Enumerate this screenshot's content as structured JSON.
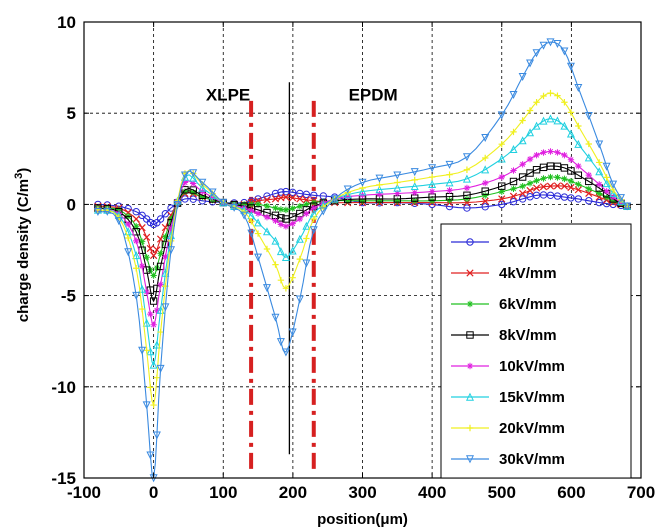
{
  "chart_data": {
    "type": "line",
    "xlabel": "position(μm)",
    "ylabel": "charge density (C/m",
    "ylabel_sup": "3",
    "ylabel_close": ")",
    "xlim": [
      -100,
      700
    ],
    "ylim": [
      -15,
      10
    ],
    "xticks": [
      -100,
      0,
      100,
      200,
      300,
      400,
      500,
      600,
      700
    ],
    "yticks": [
      -15,
      -10,
      -5,
      0,
      5,
      10
    ],
    "grid": true,
    "legend_position": "lower-right",
    "annotations": [
      {
        "text": "XLPE",
        "x": 75,
        "y": 5.7
      },
      {
        "text": "EPDM",
        "x": 280,
        "y": 5.7
      }
    ],
    "vertical_lines": [
      {
        "x": 140,
        "style": "dash-dot",
        "color": "#d62020",
        "y_range": [
          -14.5,
          5.9
        ]
      },
      {
        "x": 230,
        "style": "dash-dot",
        "color": "#d62020",
        "y_range": [
          -14.5,
          5.9
        ]
      },
      {
        "x": 195,
        "style": "solid",
        "color": "#000000",
        "y_range": [
          -13.7,
          6.7
        ]
      }
    ],
    "x": [
      -80,
      -50,
      -25,
      -10,
      0,
      10,
      25,
      45,
      70,
      100,
      130,
      150,
      175,
      190,
      210,
      230,
      260,
      300,
      350,
      400,
      450,
      500,
      530,
      550,
      570,
      590,
      610,
      640,
      660,
      680
    ],
    "series": [
      {
        "name": "2kV/mm",
        "color": "#2a2ad8",
        "marker": "circle",
        "values": [
          0,
          -0.1,
          -0.4,
          -0.8,
          -1.1,
          -0.8,
          -0.2,
          0.3,
          0.2,
          0.1,
          0.1,
          0.3,
          0.6,
          0.7,
          0.6,
          0.5,
          0.4,
          0.1,
          0.1,
          0.0,
          -0.2,
          0.0,
          0.3,
          0.5,
          0.5,
          0.4,
          0.3,
          0.1,
          0.0,
          -0.1
        ]
      },
      {
        "name": "4kV/mm",
        "color": "#e02020",
        "marker": "x",
        "values": [
          -0.1,
          -0.2,
          -0.8,
          -1.8,
          -2.8,
          -1.9,
          -0.6,
          0.6,
          0.4,
          0.1,
          0.0,
          0.2,
          0.3,
          0.4,
          0.3,
          0.2,
          0.1,
          0.1,
          0.1,
          0.1,
          0.1,
          0.3,
          0.6,
          0.9,
          1.0,
          1.0,
          0.8,
          0.4,
          0.1,
          -0.1
        ]
      },
      {
        "name": "6kV/mm",
        "color": "#20c020",
        "marker": "star",
        "values": [
          -0.2,
          -0.3,
          -1.2,
          -2.9,
          -3.9,
          -2.7,
          -0.8,
          0.7,
          0.4,
          0.1,
          0.0,
          0.0,
          -0.2,
          -0.3,
          -0.1,
          0.1,
          0.2,
          0.2,
          0.2,
          0.2,
          0.3,
          0.7,
          1.0,
          1.3,
          1.5,
          1.4,
          1.1,
          0.6,
          0.2,
          -0.1
        ]
      },
      {
        "name": "8kV/mm",
        "color": "#000000",
        "marker": "square",
        "values": [
          -0.2,
          -0.4,
          -1.5,
          -3.6,
          -5.3,
          -3.4,
          -1.0,
          0.8,
          0.5,
          0.1,
          -0.1,
          -0.3,
          -0.6,
          -0.8,
          -0.5,
          -0.1,
          0.2,
          0.3,
          0.3,
          0.4,
          0.5,
          1.0,
          1.5,
          1.9,
          2.1,
          2.0,
          1.6,
          0.9,
          0.3,
          -0.1
        ]
      },
      {
        "name": "10kV/mm",
        "color": "#e020e0",
        "marker": "star",
        "values": [
          -0.3,
          -0.5,
          -2.0,
          -4.8,
          -6.6,
          -4.4,
          -1.3,
          1.2,
          0.7,
          0.1,
          -0.2,
          -0.5,
          -0.9,
          -1.2,
          -0.8,
          -0.2,
          0.3,
          0.5,
          0.6,
          0.7,
          0.9,
          1.5,
          2.2,
          2.7,
          2.9,
          2.7,
          2.1,
          1.1,
          0.4,
          -0.1
        ]
      },
      {
        "name": "15kV/mm",
        "color": "#20d0e0",
        "marker": "triangle-up",
        "values": [
          -0.3,
          -0.6,
          -2.8,
          -6.5,
          -8.8,
          -5.8,
          -1.7,
          1.5,
          0.9,
          0.1,
          -0.3,
          -1.0,
          -2.0,
          -2.9,
          -1.9,
          -0.5,
          0.3,
          0.7,
          0.9,
          1.1,
          1.4,
          2.5,
          3.5,
          4.3,
          4.7,
          4.3,
          3.3,
          1.8,
          0.6,
          -0.1
        ]
      },
      {
        "name": "20kV/mm",
        "color": "#f0f020",
        "marker": "plus",
        "values": [
          -0.3,
          -0.7,
          -3.5,
          -8.0,
          -11.0,
          -7.0,
          -2.0,
          1.7,
          1.1,
          0.1,
          -0.4,
          -1.6,
          -3.3,
          -4.6,
          -3.0,
          -0.8,
          0.3,
          0.9,
          1.2,
          1.5,
          1.9,
          3.3,
          4.6,
          5.6,
          6.1,
          5.6,
          4.3,
          2.3,
          0.8,
          -0.1
        ]
      },
      {
        "name": "30kV/mm",
        "color": "#3a8ae0",
        "marker": "triangle-down",
        "values": [
          -0.4,
          -0.9,
          -5.0,
          -11.0,
          -15.0,
          -9.0,
          -2.5,
          1.6,
          1.2,
          0.1,
          -0.6,
          -2.9,
          -6.2,
          -8.1,
          -5.2,
          -1.4,
          0.3,
          1.2,
          1.6,
          2.0,
          2.6,
          4.9,
          7.0,
          8.3,
          8.9,
          8.4,
          6.4,
          3.3,
          1.1,
          -0.1
        ]
      }
    ]
  }
}
